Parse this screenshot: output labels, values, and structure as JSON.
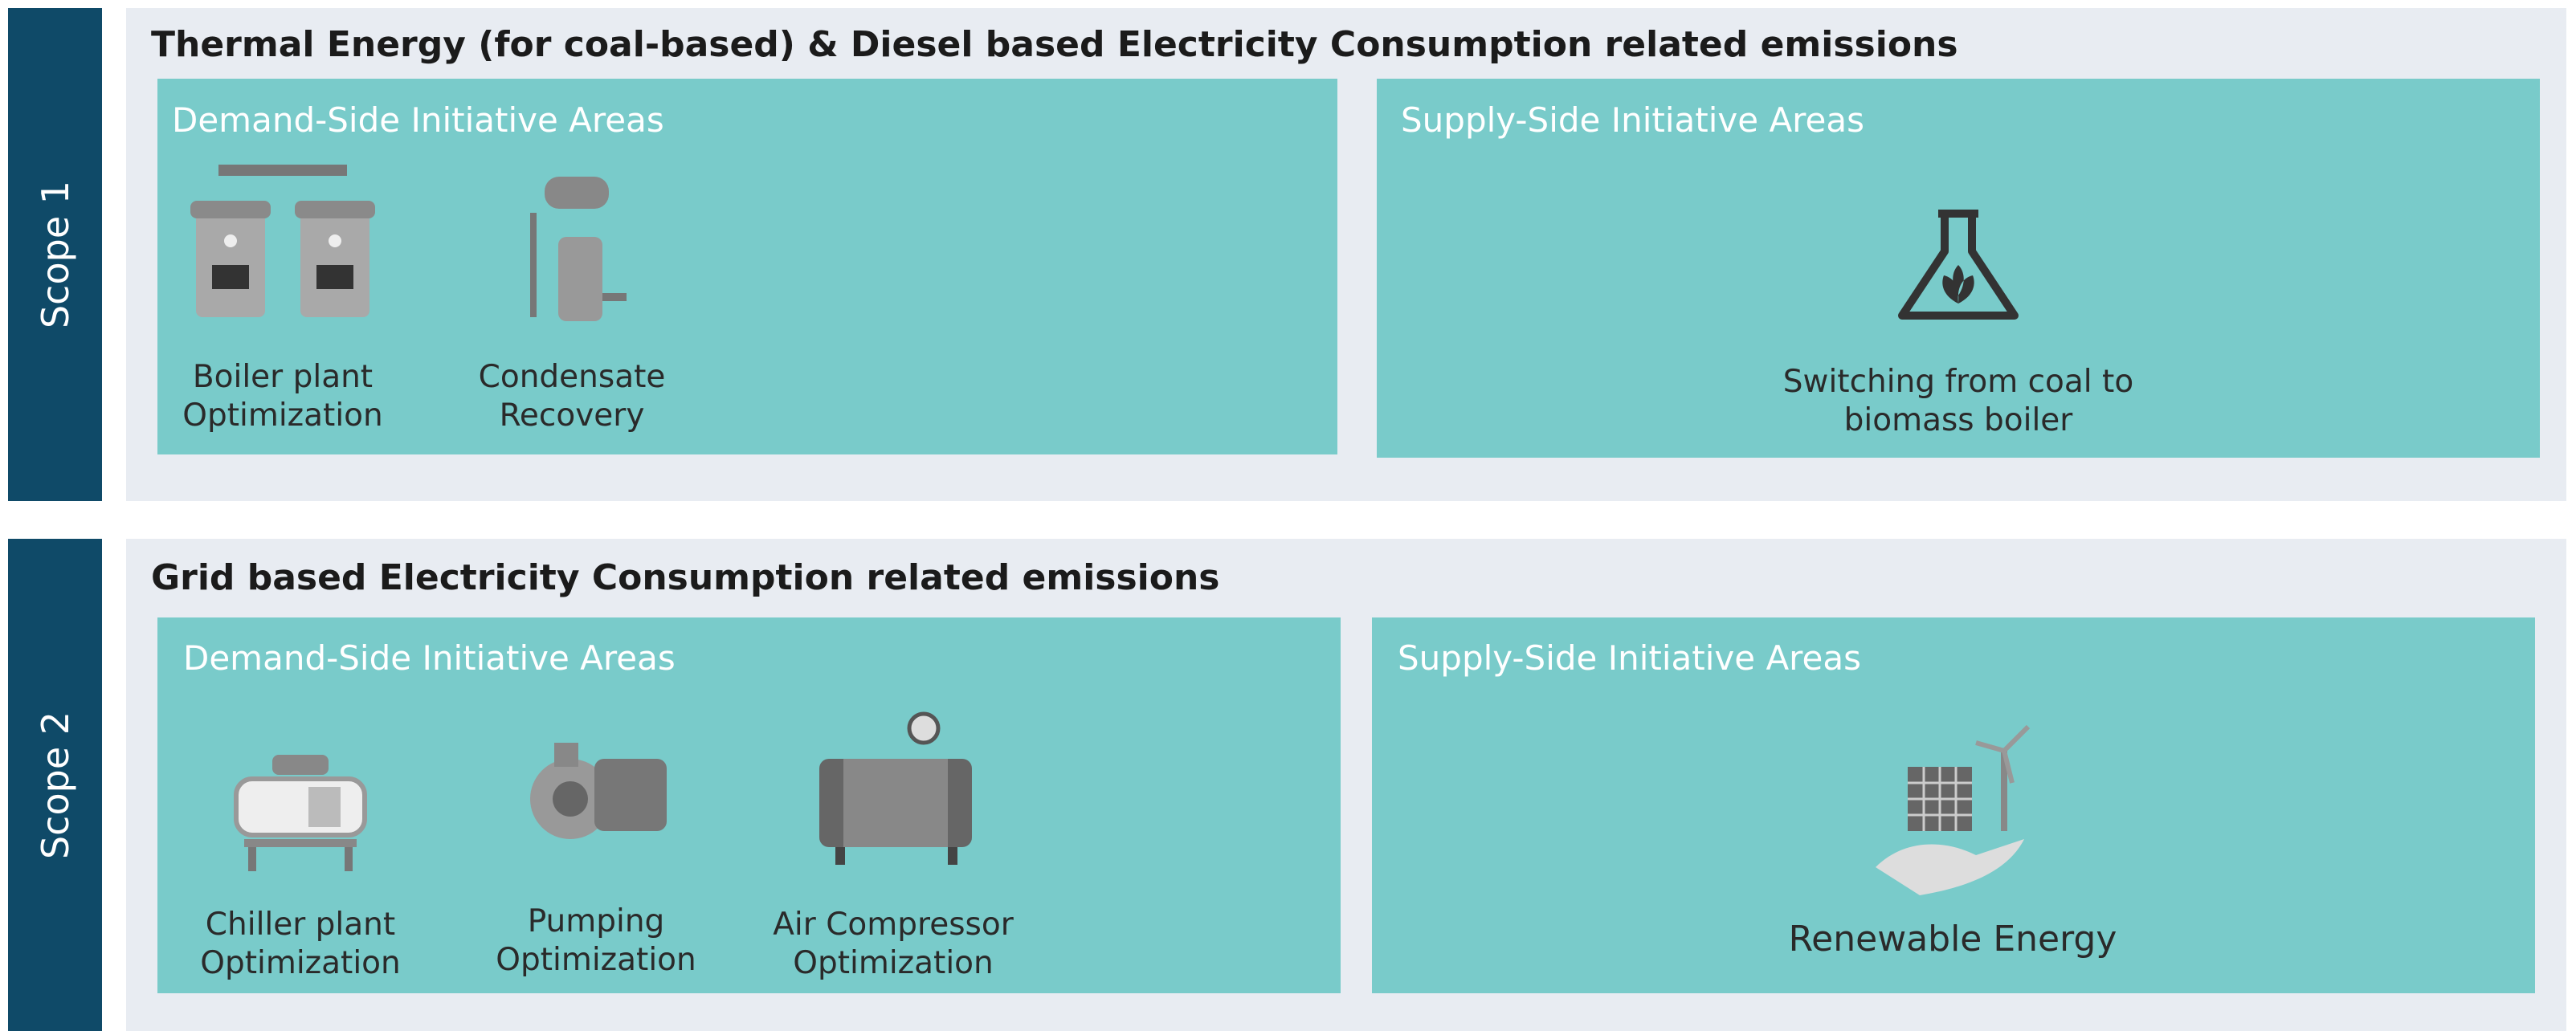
{
  "scopes": [
    {
      "label": "Scope 1",
      "title": "Thermal Energy (for coal-based) & Diesel based Electricity Consumption related emissions",
      "demand": {
        "heading": "Demand-Side Initiative Areas",
        "items": [
          "Boiler plant Optimization",
          "Condensate Recovery"
        ]
      },
      "supply": {
        "heading": "Supply-Side Initiative Areas",
        "items": [
          "Switching from coal to biomass boiler"
        ]
      }
    },
    {
      "label": "Scope 2",
      "title": "Grid based Electricity Consumption related emissions",
      "demand": {
        "heading": "Demand-Side Initiative Areas",
        "items": [
          "Chiller plant Optimization",
          "Pumping Optimization",
          "Air Compressor Optimization"
        ]
      },
      "supply": {
        "heading": "Supply-Side Initiative Areas",
        "items": [
          "Renewable Energy"
        ]
      }
    }
  ]
}
